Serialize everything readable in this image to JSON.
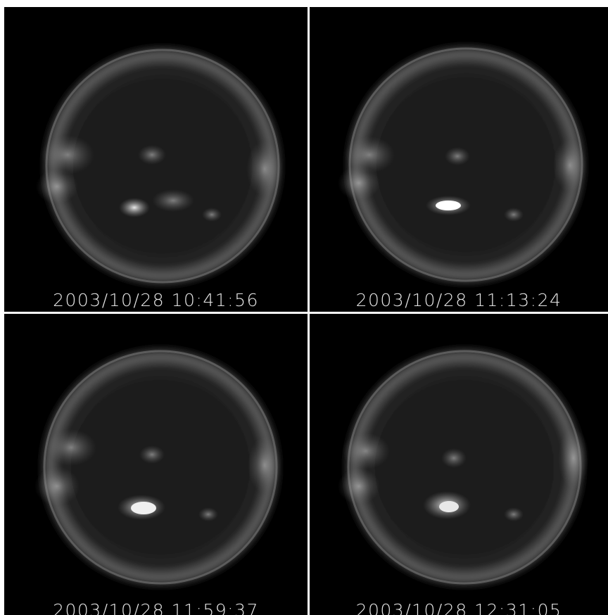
{
  "panels": [
    {
      "timestamp": "2003/10/28 10:41:56"
    },
    {
      "timestamp": "2003/10/28 11:13:24"
    },
    {
      "timestamp": "2003/10/28 11:59:37"
    },
    {
      "timestamp": "2003/10/28 12:31:05"
    }
  ]
}
